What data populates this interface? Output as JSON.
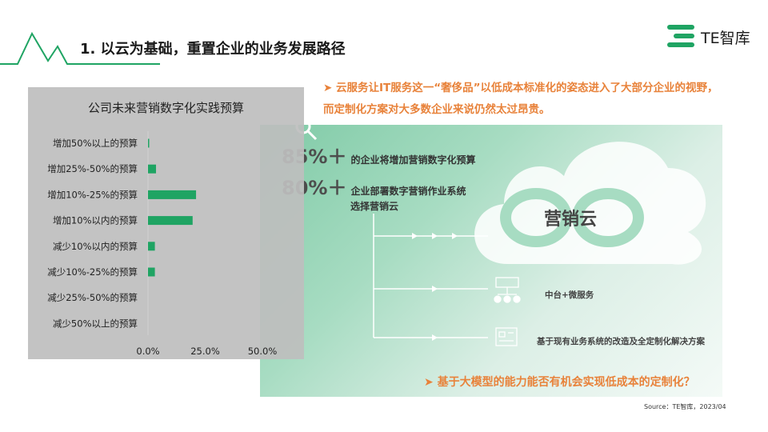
{
  "header": {
    "title": "1. 以云为基础，重置企业的业务发展路径",
    "logo_text": "TE智库"
  },
  "bullet1": "云服务让IT服务这一“奢侈品”以低成本标准化的姿态进入了大部分企业的视野，而定制化方案对大多数企业来说仍然太过昂贵。",
  "stats": [
    {
      "value": "85%＋",
      "label": "的企业将增加营销数字化预算"
    },
    {
      "value": "80%＋",
      "label": "企业部署数字营销作业系统",
      "label_line2": "选择营销云"
    }
  ],
  "cloud_label": "营销云",
  "branches": [
    {
      "label": "中台+微服务",
      "icon": "org-chart-icon"
    },
    {
      "label": "基于现有业务系统的改造及全定制化解决方案",
      "icon": "system-icon"
    }
  ],
  "bullet2": "基于大模型的能力能否有机会实现低成本的定制化？",
  "source": "Source：TE智库，2023/04",
  "colors": {
    "bar": "#1fa463",
    "accent": "#e8823a",
    "brand_green": "#1fa463"
  },
  "chart_data": {
    "type": "bar",
    "orientation": "horizontal",
    "title": "公司未来营销数字化实践预算",
    "categories": [
      "增加50%以上的预算",
      "增加25%-50%的预算",
      "增加10%-25%的预算",
      "增加10%以内的预算",
      "减少10%以内的预算",
      "减少10%-25%的预算",
      "减少25%-50%的预算",
      "减少50%以上的预算"
    ],
    "values": [
      0.5,
      3.5,
      21.0,
      19.5,
      3.0,
      3.0,
      0,
      0
    ],
    "xlim": [
      0,
      50
    ],
    "xticks": [
      "0.0%",
      "25.0%",
      "50.0%"
    ],
    "grid": false,
    "legend": "none"
  }
}
